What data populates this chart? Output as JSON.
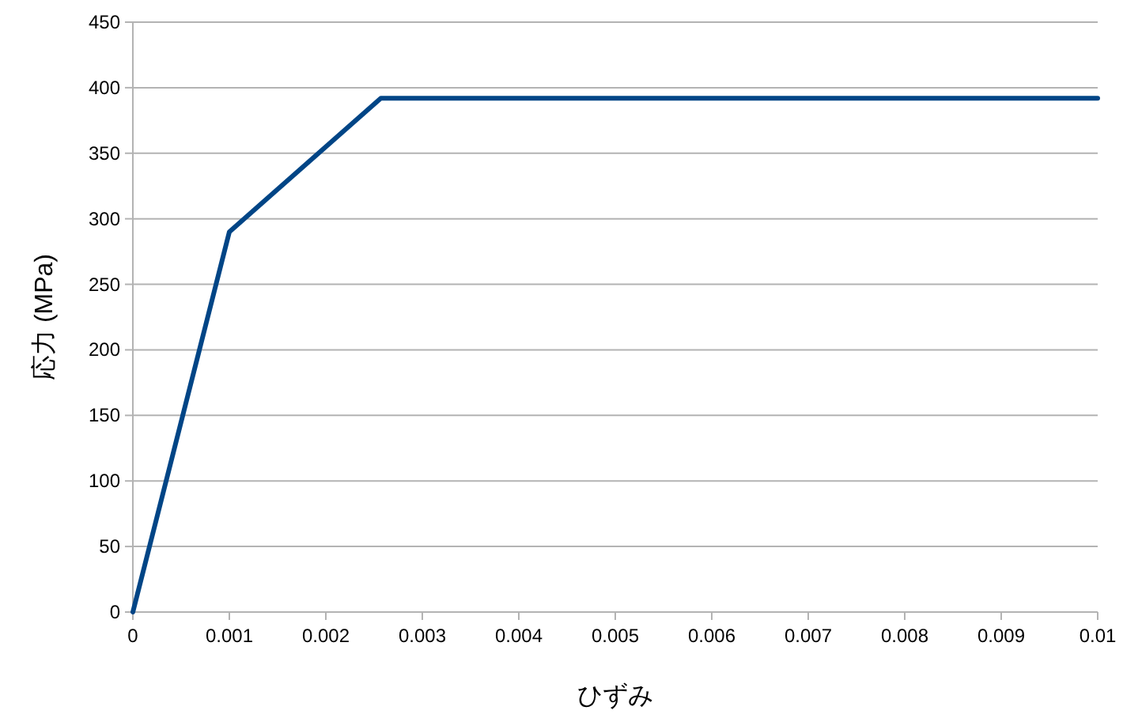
{
  "chart_data": {
    "type": "line",
    "xlabel": "ひずみ",
    "ylabel": "応力 (MPa)",
    "x": [
      0,
      0.001,
      0.00257,
      0.01
    ],
    "series": [
      {
        "color": "#004586",
        "values": [
          0,
          290,
          392,
          392
        ]
      }
    ],
    "xlim": [
      0,
      0.01
    ],
    "xticks": [
      0,
      0.001,
      0.002,
      0.003,
      0.004,
      0.005,
      0.006,
      0.007,
      0.008,
      0.009,
      0.01
    ],
    "ylim": [
      0,
      450
    ],
    "yticks": [
      0,
      50,
      100,
      150,
      200,
      250,
      300,
      350,
      400,
      450
    ],
    "grid": "y",
    "marker": "none",
    "line_style": "solid"
  }
}
